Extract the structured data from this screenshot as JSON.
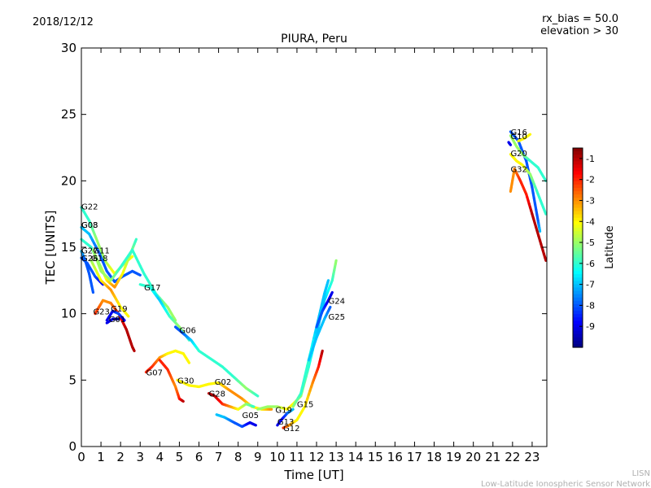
{
  "header": {
    "date": "2018/12/12",
    "rx_bias": "rx_bias = 50.0",
    "elevation": "elevation > 30"
  },
  "footer": {
    "line1": "LISN",
    "line2": "Low-Latitude Ionospheric Sensor Network"
  },
  "colorbar": {
    "label": "Latitude",
    "ticks": [
      "-1",
      "-2",
      "-3",
      "-4",
      "-5",
      "-6",
      "-7",
      "-8",
      "-9"
    ],
    "range": [
      -10,
      -0.5
    ],
    "colormap": "jet"
  },
  "chart_data": {
    "type": "scatter",
    "title": "PIURA, Peru",
    "xlabel": "Time [UT]",
    "ylabel": "TEC [UNITS]",
    "xlim": [
      0,
      23.75
    ],
    "ylim": [
      0,
      30
    ],
    "xticks": [
      "0",
      "1",
      "2",
      "3",
      "4",
      "5",
      "6",
      "7",
      "8",
      "9",
      "10",
      "11",
      "12",
      "13",
      "14",
      "15",
      "16",
      "17",
      "18",
      "19",
      "20",
      "21",
      "22",
      "23"
    ],
    "yticks": [
      "0",
      "5",
      "10",
      "15",
      "20",
      "25",
      "30"
    ],
    "grid": false,
    "tracks": [
      {
        "label": "G22",
        "label_at": [
          0.0,
          18.1
        ],
        "points": [
          [
            0.0,
            18.0,
            -6
          ],
          [
            0.4,
            17.0,
            -6
          ],
          [
            0.8,
            15.5,
            -5
          ],
          [
            1.2,
            14.0,
            -5
          ],
          [
            1.7,
            13.0,
            -4
          ],
          [
            2.2,
            13.8,
            -5
          ],
          [
            2.6,
            14.3,
            -4
          ]
        ]
      },
      {
        "label": "G08",
        "label_at": [
          0.0,
          16.7
        ],
        "points": [
          [
            0.0,
            16.5,
            -7
          ],
          [
            0.4,
            16.0,
            -7
          ],
          [
            0.9,
            14.6,
            -8
          ],
          [
            1.3,
            13.2,
            -8
          ],
          [
            1.7,
            12.4,
            -8
          ],
          [
            2.1,
            12.8,
            -8
          ],
          [
            2.6,
            13.2,
            -8
          ],
          [
            3.0,
            12.9,
            -8
          ]
        ]
      },
      {
        "label": "G03",
        "label_at": [
          0.0,
          16.7
        ],
        "points": [
          [
            0.0,
            15.6,
            -6
          ],
          [
            0.5,
            15.0,
            -6
          ],
          [
            1.0,
            13.5,
            -5
          ],
          [
            1.3,
            12.5,
            -4
          ],
          [
            1.7,
            12.0,
            -3
          ],
          [
            2.1,
            13.0,
            -4
          ],
          [
            2.5,
            14.5,
            -5
          ],
          [
            2.8,
            15.6,
            -6
          ]
        ]
      },
      {
        "label": "G27",
        "label_at": [
          0.0,
          14.8
        ],
        "points": [
          [
            0.0,
            14.7,
            -7
          ],
          [
            0.2,
            14.0,
            -8
          ],
          [
            0.4,
            13.0,
            -8
          ],
          [
            0.6,
            11.6,
            -8
          ]
        ]
      },
      {
        "label": "G11",
        "label_at": [
          0.6,
          14.8
        ],
        "points": [
          [
            0.6,
            14.8,
            -5
          ],
          [
            1.0,
            13.2,
            -5
          ],
          [
            1.5,
            12.5,
            -5
          ],
          [
            2.0,
            13.5,
            -6
          ],
          [
            2.6,
            14.8,
            -6
          ],
          [
            3.2,
            13.0,
            -6
          ],
          [
            3.8,
            11.5,
            -6
          ],
          [
            4.4,
            10.5,
            -5
          ],
          [
            4.8,
            9.5,
            -5
          ]
        ]
      },
      {
        "label": "G26",
        "label_at": [
          0.0,
          14.2
        ],
        "points": [
          [
            0.0,
            14.2,
            -8
          ],
          [
            0.3,
            13.8,
            -8
          ],
          [
            0.7,
            12.8,
            -8
          ],
          [
            1.1,
            12.2,
            -9
          ]
        ]
      },
      {
        "label": "G18",
        "label_at": [
          0.5,
          14.2
        ],
        "points": [
          [
            0.5,
            14.0,
            -5
          ],
          [
            1.0,
            12.5,
            -4
          ],
          [
            1.5,
            11.8,
            -3
          ],
          [
            2.0,
            10.5,
            -4
          ],
          [
            2.4,
            9.8,
            -4
          ]
        ]
      },
      {
        "label": "G17",
        "label_at": [
          3.2,
          12.0
        ],
        "points": [
          [
            3.0,
            12.2,
            -6
          ],
          [
            3.5,
            12.0,
            -6
          ],
          [
            4.0,
            11.0,
            -7
          ],
          [
            4.5,
            9.8,
            -6
          ],
          [
            5.0,
            9.0,
            -5
          ],
          [
            5.5,
            8.0,
            -6
          ]
        ]
      },
      {
        "label": "G23",
        "label_at": [
          0.6,
          10.2
        ],
        "points": [
          [
            0.7,
            10.0,
            -2
          ],
          [
            1.1,
            11.0,
            -3
          ],
          [
            1.5,
            10.8,
            -3
          ],
          [
            1.9,
            10.0,
            -2
          ],
          [
            2.3,
            8.8,
            -1
          ],
          [
            2.6,
            7.5,
            -1
          ],
          [
            2.7,
            7.2,
            -1
          ]
        ]
      },
      {
        "label": "G19",
        "label_at": [
          1.5,
          10.4
        ],
        "points": [
          [
            1.3,
            9.5,
            -9
          ],
          [
            1.6,
            10.2,
            -9
          ],
          [
            1.9,
            10.0,
            -8
          ],
          [
            2.2,
            9.5,
            -9
          ]
        ]
      },
      {
        "label": "G01",
        "label_at": [
          1.4,
          9.6
        ],
        "points": [
          [
            1.3,
            9.3,
            -9
          ],
          [
            1.6,
            9.6,
            -9
          ],
          [
            1.9,
            9.6,
            -10
          ]
        ]
      },
      {
        "label": "G06",
        "label_at": [
          5.0,
          8.8
        ],
        "points": [
          [
            4.8,
            9.0,
            -8
          ],
          [
            5.2,
            8.5,
            -8
          ],
          [
            5.6,
            8.0,
            -7
          ],
          [
            6.0,
            7.2,
            -6
          ],
          [
            6.6,
            6.6,
            -6
          ],
          [
            7.2,
            6.0,
            -6
          ],
          [
            7.8,
            5.2,
            -6
          ],
          [
            8.4,
            4.4,
            -5
          ],
          [
            9.0,
            3.8,
            -6
          ]
        ]
      },
      {
        "label": "G07",
        "label_at": [
          3.3,
          5.6
        ],
        "points": [
          [
            3.3,
            5.6,
            -2
          ],
          [
            3.6,
            6.0,
            -2
          ],
          [
            4.0,
            6.7,
            -3
          ],
          [
            4.4,
            7.0,
            -4
          ],
          [
            4.8,
            7.2,
            -4
          ],
          [
            5.2,
            7.0,
            -4
          ],
          [
            5.5,
            6.3,
            -4
          ]
        ]
      },
      {
        "label": "G30",
        "label_at": [
          4.9,
          5.0
        ],
        "points": [
          [
            4.0,
            6.5,
            -2
          ],
          [
            4.4,
            5.8,
            -2
          ],
          [
            4.8,
            4.5,
            -3
          ],
          [
            5.0,
            3.6,
            -2
          ],
          [
            5.2,
            3.4,
            -1
          ]
        ]
      },
      {
        "label": "G02",
        "label_at": [
          6.8,
          4.9
        ],
        "points": [
          [
            4.9,
            5.0,
            -4
          ],
          [
            5.5,
            4.6,
            -4
          ],
          [
            6.0,
            4.5,
            -4
          ],
          [
            6.5,
            4.7,
            -4
          ],
          [
            7.0,
            4.8,
            -4
          ],
          [
            7.6,
            4.2,
            -3
          ],
          [
            8.2,
            3.6,
            -3
          ],
          [
            8.7,
            3.0,
            -4
          ],
          [
            9.2,
            2.8,
            -4
          ],
          [
            9.7,
            2.8,
            -3
          ]
        ]
      },
      {
        "label": "G28",
        "label_at": [
          6.5,
          4.0
        ],
        "points": [
          [
            6.5,
            4.0,
            -1
          ],
          [
            6.8,
            3.8,
            -1
          ],
          [
            7.2,
            3.2,
            -2
          ],
          [
            7.6,
            3.0,
            -3
          ],
          [
            8.0,
            2.8,
            -4
          ],
          [
            8.4,
            3.2,
            -5
          ],
          [
            8.8,
            3.0,
            -6
          ]
        ]
      },
      {
        "label": "G05",
        "label_at": [
          8.2,
          2.4
        ],
        "points": [
          [
            6.9,
            2.4,
            -7
          ],
          [
            7.3,
            2.2,
            -7
          ],
          [
            7.8,
            1.8,
            -8
          ],
          [
            8.2,
            1.5,
            -8
          ],
          [
            8.6,
            1.8,
            -9
          ],
          [
            8.9,
            1.6,
            -9
          ]
        ]
      },
      {
        "label": "G19",
        "label_at": [
          9.9,
          2.8
        ],
        "points": [
          [
            9.0,
            2.8,
            -5
          ],
          [
            9.5,
            3.0,
            -5
          ],
          [
            10.0,
            3.0,
            -5
          ],
          [
            10.5,
            2.8,
            -4
          ],
          [
            10.8,
            3.2,
            -4
          ],
          [
            11.2,
            3.8,
            -5
          ],
          [
            11.6,
            6.0,
            -6
          ],
          [
            12.0,
            8.5,
            -7
          ],
          [
            12.4,
            11.0,
            -7
          ],
          [
            12.8,
            12.5,
            -6
          ],
          [
            13.0,
            14.0,
            -5
          ]
        ]
      },
      {
        "label": "G13",
        "label_at": [
          10.0,
          1.9
        ],
        "points": [
          [
            10.0,
            1.6,
            -9
          ],
          [
            10.2,
            2.0,
            -9
          ],
          [
            10.5,
            2.5,
            -8
          ],
          [
            10.8,
            2.8,
            -7
          ]
        ]
      },
      {
        "label": "G12",
        "label_at": [
          10.3,
          1.4
        ],
        "points": [
          [
            10.3,
            1.4,
            -2
          ],
          [
            10.6,
            1.6,
            -3
          ],
          [
            11.0,
            2.0,
            -4
          ],
          [
            11.4,
            3.0,
            -4
          ],
          [
            11.8,
            4.8,
            -3
          ],
          [
            12.1,
            6.0,
            -2
          ],
          [
            12.3,
            7.2,
            -1
          ]
        ]
      },
      {
        "label": "G15",
        "label_at": [
          11.0,
          3.2
        ],
        "points": [
          [
            10.8,
            3.0,
            -5
          ],
          [
            11.2,
            4.0,
            -6
          ],
          [
            11.6,
            6.5,
            -6
          ],
          [
            12.0,
            9.0,
            -7
          ],
          [
            12.4,
            11.5,
            -7
          ],
          [
            12.6,
            12.5,
            -7
          ]
        ]
      },
      {
        "label": "G24",
        "label_at": [
          12.6,
          11.0
        ],
        "points": [
          [
            12.0,
            9.0,
            -8
          ],
          [
            12.3,
            10.2,
            -8
          ],
          [
            12.6,
            11.0,
            -9
          ],
          [
            12.8,
            11.6,
            -9
          ]
        ]
      },
      {
        "label": "G25",
        "label_at": [
          12.6,
          9.8
        ],
        "points": [
          [
            11.6,
            6.5,
            -7
          ],
          [
            12.0,
            8.2,
            -7
          ],
          [
            12.4,
            9.6,
            -7
          ],
          [
            12.7,
            10.5,
            -8
          ]
        ]
      },
      {
        "label": "G16",
        "label_at": [
          21.9,
          23.7
        ],
        "points": [
          [
            21.9,
            23.7,
            -8
          ],
          [
            22.3,
            23.0,
            -8
          ],
          [
            22.7,
            21.5,
            -8
          ],
          [
            23.0,
            19.5,
            -8
          ],
          [
            23.3,
            17.0,
            -8
          ],
          [
            23.4,
            16.2,
            -7
          ]
        ]
      },
      {
        "label": "G10",
        "label_at": [
          21.9,
          23.4
        ],
        "points": [
          [
            21.9,
            23.4,
            -5
          ],
          [
            22.2,
            22.6,
            -5
          ],
          [
            22.5,
            22.0,
            -5
          ],
          [
            22.9,
            21.5,
            -6
          ],
          [
            23.3,
            21.0,
            -6
          ],
          [
            23.7,
            20.0,
            -6
          ]
        ]
      },
      {
        "label": "G20",
        "label_at": [
          21.9,
          22.1
        ],
        "points": [
          [
            21.9,
            22.0,
            -4
          ],
          [
            22.2,
            21.5,
            -4
          ],
          [
            22.5,
            21.2,
            -4
          ],
          [
            22.9,
            20.5,
            -5
          ],
          [
            23.3,
            19.0,
            -6
          ],
          [
            23.7,
            17.5,
            -6
          ]
        ]
      },
      {
        "label": "G32",
        "label_at": [
          21.9,
          20.9
        ],
        "points": [
          [
            21.9,
            19.2,
            -3
          ],
          [
            22.1,
            20.9,
            -3
          ],
          [
            22.4,
            20.0,
            -2
          ],
          [
            22.7,
            19.0,
            -2
          ],
          [
            23.0,
            17.5,
            -1
          ],
          [
            23.4,
            15.5,
            -1
          ],
          [
            23.7,
            14.0,
            -1
          ]
        ]
      },
      {
        "label": "",
        "label_at": null,
        "points": [
          [
            22.3,
            23.0,
            -4
          ],
          [
            22.6,
            23.2,
            -4
          ],
          [
            22.9,
            23.5,
            -4
          ]
        ]
      },
      {
        "label": "",
        "label_at": null,
        "points": [
          [
            21.8,
            22.9,
            -9
          ],
          [
            21.9,
            22.7,
            -9
          ]
        ]
      }
    ]
  }
}
